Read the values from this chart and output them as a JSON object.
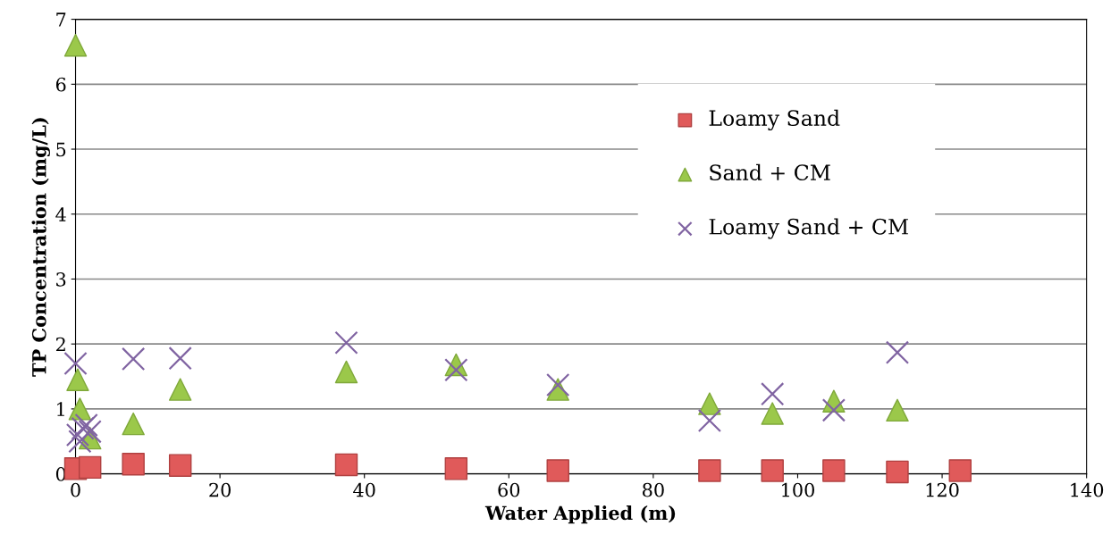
{
  "chart_data": {
    "type": "scatter",
    "xlabel": "Water Applied (m)",
    "ylabel": "TP Concentration (mg/L)",
    "xlim": [
      0,
      140
    ],
    "xticks": [
      0,
      20,
      40,
      60,
      80,
      100,
      120,
      140
    ],
    "ylim": [
      0,
      7
    ],
    "yticks": [
      0,
      1,
      2,
      3,
      4,
      5,
      6,
      7
    ],
    "grid": "y",
    "legend": "top right",
    "series": [
      {
        "name": "Loamy Sand",
        "color": "#e05a5a",
        "marker": "square",
        "x": [
          0,
          0.3,
          0.6,
          1,
          2,
          8,
          14.5,
          37.5,
          52.7,
          66.8,
          87.8,
          96.5,
          105,
          113.8,
          122.5
        ],
        "values": [
          0.08,
          null,
          null,
          null,
          0.1,
          0.15,
          0.13,
          0.14,
          0.08,
          0.05,
          0.05,
          0.05,
          0.05,
          0.03,
          0.05
        ]
      },
      {
        "name": "Sand + CM",
        "color": "#9bc84a",
        "marker": "triangle",
        "x": [
          0,
          0.3,
          0.6,
          1,
          2,
          8,
          14.5,
          37.5,
          52.7,
          66.8,
          87.8,
          96.5,
          105,
          113.8
        ],
        "values": [
          6.6,
          1.45,
          1.0,
          null,
          0.55,
          0.77,
          1.3,
          1.57,
          1.68,
          1.3,
          1.08,
          0.93,
          1.12,
          0.98
        ]
      },
      {
        "name": "Loamy Sand + CM",
        "color": "#8064a2",
        "marker": "cross",
        "x": [
          0,
          0.3,
          0.6,
          1,
          1.5,
          2,
          8,
          14.5,
          37.5,
          52.7,
          66.8,
          87.8,
          96.5,
          105,
          113.8
        ],
        "values": [
          1.7,
          0.6,
          0.5,
          0.7,
          0.75,
          0.65,
          1.77,
          1.78,
          2.02,
          1.6,
          1.37,
          0.82,
          1.23,
          0.98,
          1.87
        ]
      }
    ]
  }
}
